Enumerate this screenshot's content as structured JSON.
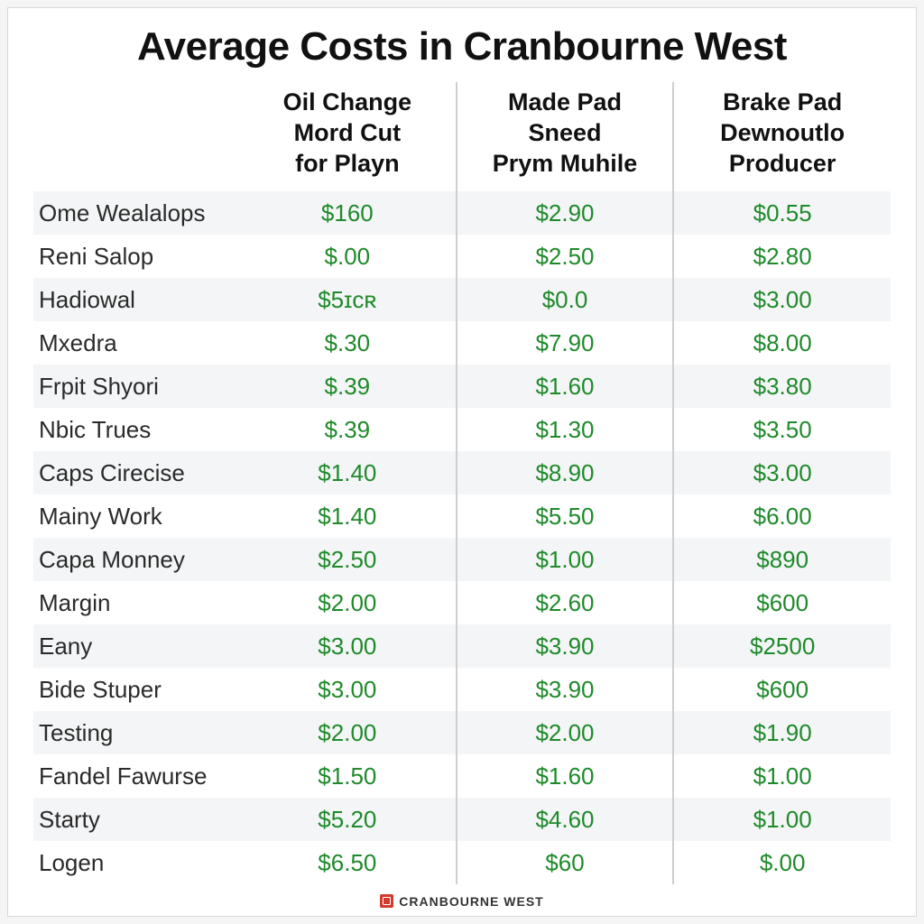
{
  "title": "Average Costs in Cranbourne West",
  "footer_text": "CRANBOURNE WEST",
  "table": {
    "value_color": "#1f8a2b",
    "row_stripe_color": "#f4f5f6",
    "separator_color": "#cfcfcf",
    "label_fontsize": 26,
    "header_fontsize": 27,
    "title_fontsize": 44,
    "columns": [
      {
        "lines": [
          "Oil Change",
          "Mord Cut",
          "for Playn"
        ]
      },
      {
        "lines": [
          "Made Pad",
          "Sneed",
          "Prym Muhile"
        ]
      },
      {
        "lines": [
          "Brake Pad",
          "Dewnoutlo",
          "Producer"
        ]
      }
    ],
    "rows": [
      {
        "label": "Ome Wealalops",
        "values": [
          "$160",
          "$2.90",
          "$0.55"
        ]
      },
      {
        "label": "Reni Salop",
        "values": [
          "$.00",
          "$2.50",
          "$2.80"
        ]
      },
      {
        "label": "Hadiowal",
        "values": [
          "$5ɪᴄʀ",
          "$0.0",
          "$3.00"
        ]
      },
      {
        "label": "Mxedra",
        "values": [
          "$.30",
          "$7.90",
          "$8.00"
        ]
      },
      {
        "label": "Frpit Shyori",
        "values": [
          "$.39",
          "$1.60",
          "$3.80"
        ]
      },
      {
        "label": "Nbic Trues",
        "values": [
          "$.39",
          "$1.30",
          "$3.50"
        ]
      },
      {
        "label": "Caps Cirecise",
        "values": [
          "$1.40",
          "$8.90",
          "$3.00"
        ]
      },
      {
        "label": "Mainy Work",
        "values": [
          "$1.40",
          "$5.50",
          "$6.00"
        ]
      },
      {
        "label": "Capa Monney",
        "values": [
          "$2.50",
          "$1.00",
          "$890"
        ]
      },
      {
        "label": "Margin",
        "values": [
          "$2.00",
          "$2.60",
          "$600"
        ]
      },
      {
        "label": "Eany",
        "values": [
          "$3.00",
          "$3.90",
          "$2500"
        ]
      },
      {
        "label": "Bide Stuper",
        "values": [
          "$3.00",
          "$3.90",
          "$600"
        ]
      },
      {
        "label": "Testing",
        "values": [
          "$2.00",
          "$2.00",
          "$1.90"
        ]
      },
      {
        "label": "Fandel Fawurse",
        "values": [
          "$1.50",
          "$1.60",
          "$1.00"
        ]
      },
      {
        "label": "Starty",
        "values": [
          "$5.20",
          "$4.60",
          "$1.00"
        ]
      },
      {
        "label": "Logen",
        "values": [
          "$6.50",
          "$60",
          "$.00"
        ]
      }
    ]
  }
}
